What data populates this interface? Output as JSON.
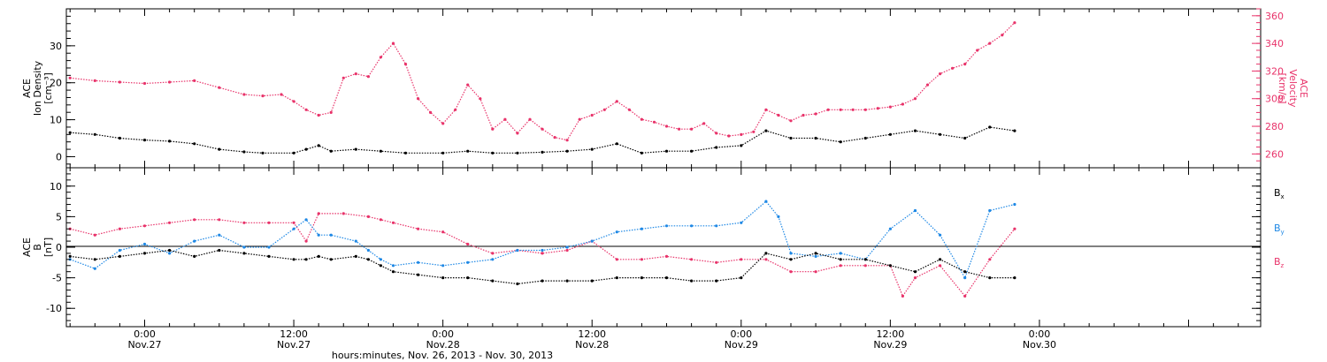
{
  "figure": {
    "xlabel": "hours:minutes, Nov. 26, 2013 - Nov. 30, 2013",
    "x_range_hours": [
      -6.3,
      89.8
    ],
    "x_ticks": [
      {
        "hours": 0,
        "time": "0:00",
        "date": "Nov.27"
      },
      {
        "hours": 12,
        "time": "12:00",
        "date": "Nov.27"
      },
      {
        "hours": 24,
        "time": "0:00",
        "date": "Nov.28"
      },
      {
        "hours": 36,
        "time": "12:00",
        "date": "Nov.28"
      },
      {
        "hours": 48,
        "time": "0:00",
        "date": "Nov.29"
      },
      {
        "hours": 60,
        "time": "12:00",
        "date": "Nov.29"
      },
      {
        "hours": 72,
        "time": "0:00",
        "date": "Nov.30"
      }
    ]
  },
  "top_panel": {
    "left_ylabel": [
      "ACE",
      "Ion Density",
      "[cm⁻³]"
    ],
    "right_ylabel": [
      "ACE",
      "Velocity",
      "[km/s]"
    ],
    "left_ticks": [
      "0",
      "10",
      "20",
      "30"
    ],
    "right_ticks": [
      "260",
      "280",
      "300",
      "320",
      "340",
      "360"
    ]
  },
  "bottom_panel": {
    "ylabel": [
      "ACE",
      "B",
      "[nT]"
    ],
    "ticks": [
      "-10",
      "-5",
      "0",
      "5",
      "10"
    ],
    "legend": [
      "B",
      "B",
      "B"
    ],
    "legend_subs": [
      "x",
      "y",
      "z"
    ]
  },
  "colors": {
    "density": "#000000",
    "velocity": "#e8336a",
    "bx": "#000000",
    "by": "#1e88e5",
    "bz": "#e8336a",
    "axis": "#000000"
  },
  "chart_data": [
    {
      "type": "scatter",
      "x_unit": "hours since 2013-11-27 00:00",
      "ylabel": "Ion Density",
      "ylim": [
        -3,
        40
      ],
      "series": [
        {
          "points": [
            [
              -6,
              6.5
            ],
            [
              -4,
              6
            ],
            [
              -2,
              5
            ],
            [
              0,
              4.5
            ],
            [
              2,
              4.2
            ],
            [
              4,
              3.5
            ],
            [
              6,
              2
            ],
            [
              8,
              1.3
            ],
            [
              9.5,
              1
            ],
            [
              12,
              1
            ],
            [
              13,
              2
            ],
            [
              14,
              3
            ],
            [
              15,
              1.5
            ],
            [
              17,
              2
            ],
            [
              19,
              1.5
            ],
            [
              21,
              1
            ],
            [
              24,
              1
            ],
            [
              26,
              1.5
            ],
            [
              28,
              1
            ],
            [
              30,
              1
            ],
            [
              32,
              1.2
            ],
            [
              34,
              1.5
            ],
            [
              36,
              2
            ],
            [
              38,
              3.5
            ],
            [
              40,
              1
            ],
            [
              42,
              1.5
            ],
            [
              44,
              1.5
            ],
            [
              46,
              2.5
            ],
            [
              48,
              3
            ],
            [
              50,
              7
            ],
            [
              52,
              5
            ],
            [
              54,
              5
            ],
            [
              56,
              4
            ],
            [
              58,
              5
            ],
            [
              60,
              6
            ],
            [
              62,
              7
            ],
            [
              64,
              6
            ],
            [
              66,
              5
            ],
            [
              68,
              8
            ],
            [
              70,
              7
            ]
          ]
        }
      ]
    },
    {
      "type": "scatter",
      "x_unit": "hours since 2013-11-27 00:00",
      "ylabel": "Velocity",
      "ylim": [
        250,
        365
      ],
      "series": [
        {
          "points": [
            [
              -6,
              315
            ],
            [
              -4,
              313
            ],
            [
              -2,
              312
            ],
            [
              0,
              311
            ],
            [
              2,
              312
            ],
            [
              4,
              313
            ],
            [
              6,
              308
            ],
            [
              8,
              303
            ],
            [
              9.5,
              302
            ],
            [
              11,
              303
            ],
            [
              12,
              298
            ],
            [
              13,
              292
            ],
            [
              14,
              288
            ],
            [
              15,
              290
            ],
            [
              16,
              315
            ],
            [
              17,
              318
            ],
            [
              18,
              316
            ],
            [
              19,
              330
            ],
            [
              20,
              340
            ],
            [
              21,
              325
            ],
            [
              22,
              300
            ],
            [
              23,
              290
            ],
            [
              24,
              282
            ],
            [
              25,
              292
            ],
            [
              26,
              310
            ],
            [
              27,
              300
            ],
            [
              28,
              278
            ],
            [
              29,
              285
            ],
            [
              30,
              275
            ],
            [
              31,
              285
            ],
            [
              32,
              278
            ],
            [
              33,
              272
            ],
            [
              34,
              270
            ],
            [
              35,
              285
            ],
            [
              36,
              288
            ],
            [
              37,
              292
            ],
            [
              38,
              298
            ],
            [
              39,
              292
            ],
            [
              40,
              285
            ],
            [
              41,
              283
            ],
            [
              42,
              280
            ],
            [
              43,
              278
            ],
            [
              44,
              278
            ],
            [
              45,
              282
            ],
            [
              46,
              275
            ],
            [
              47,
              273
            ],
            [
              48,
              274
            ],
            [
              49,
              276
            ],
            [
              50,
              292
            ],
            [
              51,
              288
            ],
            [
              52,
              284
            ],
            [
              53,
              288
            ],
            [
              54,
              289
            ],
            [
              55,
              292
            ],
            [
              56,
              292
            ],
            [
              57,
              292
            ],
            [
              58,
              292
            ],
            [
              59,
              293
            ],
            [
              60,
              294
            ],
            [
              61,
              296
            ],
            [
              62,
              300
            ],
            [
              63,
              310
            ],
            [
              64,
              318
            ],
            [
              65,
              322
            ],
            [
              66,
              325
            ],
            [
              67,
              335
            ],
            [
              68,
              340
            ],
            [
              69,
              346
            ],
            [
              70,
              355
            ]
          ]
        }
      ]
    },
    {
      "type": "scatter",
      "x_unit": "hours since 2013-11-27 00:00",
      "ylabel": "B",
      "ylim": [
        -13,
        13
      ],
      "series": [
        {
          "name": "Bx",
          "points": [
            [
              -6,
              -1.5
            ],
            [
              -4,
              -2
            ],
            [
              -2,
              -1.5
            ],
            [
              0,
              -1
            ],
            [
              2,
              -0.5
            ],
            [
              4,
              -1.5
            ],
            [
              6,
              -0.5
            ],
            [
              8,
              -1
            ],
            [
              10,
              -1.5
            ],
            [
              12,
              -2
            ],
            [
              13,
              -2
            ],
            [
              14,
              -1.5
            ],
            [
              15,
              -2
            ],
            [
              17,
              -1.5
            ],
            [
              18,
              -2
            ],
            [
              19,
              -3
            ],
            [
              20,
              -4
            ],
            [
              22,
              -4.5
            ],
            [
              24,
              -5
            ],
            [
              26,
              -5
            ],
            [
              28,
              -5.5
            ],
            [
              30,
              -6
            ],
            [
              32,
              -5.5
            ],
            [
              34,
              -5.5
            ],
            [
              36,
              -5.5
            ],
            [
              38,
              -5
            ],
            [
              40,
              -5
            ],
            [
              42,
              -5
            ],
            [
              44,
              -5.5
            ],
            [
              46,
              -5.5
            ],
            [
              48,
              -5
            ],
            [
              50,
              -1
            ],
            [
              52,
              -2
            ],
            [
              54,
              -1
            ],
            [
              56,
              -2
            ],
            [
              58,
              -2
            ],
            [
              60,
              -3
            ],
            [
              62,
              -4
            ],
            [
              64,
              -2
            ],
            [
              66,
              -4
            ],
            [
              68,
              -5
            ],
            [
              70,
              -5
            ]
          ]
        },
        {
          "name": "By",
          "points": [
            [
              -6,
              -2
            ],
            [
              -4,
              -3.5
            ],
            [
              -2,
              -0.5
            ],
            [
              0,
              0.5
            ],
            [
              2,
              -1
            ],
            [
              4,
              1
            ],
            [
              6,
              2
            ],
            [
              8,
              0
            ],
            [
              10,
              0
            ],
            [
              12,
              3
            ],
            [
              13,
              4.5
            ],
            [
              14,
              2
            ],
            [
              15,
              2
            ],
            [
              17,
              1
            ],
            [
              18,
              -0.5
            ],
            [
              19,
              -2
            ],
            [
              20,
              -3
            ],
            [
              22,
              -2.5
            ],
            [
              24,
              -3
            ],
            [
              26,
              -2.5
            ],
            [
              28,
              -2
            ],
            [
              30,
              -0.5
            ],
            [
              32,
              -0.5
            ],
            [
              34,
              0
            ],
            [
              36,
              1
            ],
            [
              38,
              2.5
            ],
            [
              40,
              3
            ],
            [
              42,
              3.5
            ],
            [
              44,
              3.5
            ],
            [
              46,
              3.5
            ],
            [
              48,
              4
            ],
            [
              50,
              7.5
            ],
            [
              51,
              5
            ],
            [
              52,
              -1
            ],
            [
              54,
              -1.5
            ],
            [
              56,
              -1
            ],
            [
              58,
              -2
            ],
            [
              60,
              3
            ],
            [
              62,
              6
            ],
            [
              64,
              2
            ],
            [
              66,
              -5
            ],
            [
              68,
              6
            ],
            [
              70,
              7
            ]
          ]
        },
        {
          "name": "Bz",
          "points": [
            [
              -6,
              3
            ],
            [
              -4,
              2
            ],
            [
              -2,
              3
            ],
            [
              0,
              3.5
            ],
            [
              2,
              4
            ],
            [
              4,
              4.5
            ],
            [
              6,
              4.5
            ],
            [
              8,
              4
            ],
            [
              10,
              4
            ],
            [
              12,
              4
            ],
            [
              13,
              1
            ],
            [
              14,
              5.5
            ],
            [
              16,
              5.5
            ],
            [
              18,
              5
            ],
            [
              19,
              4.5
            ],
            [
              20,
              4
            ],
            [
              22,
              3
            ],
            [
              24,
              2.5
            ],
            [
              26,
              0.5
            ],
            [
              28,
              -1
            ],
            [
              30,
              -0.5
            ],
            [
              32,
              -1
            ],
            [
              34,
              -0.5
            ],
            [
              36,
              1
            ],
            [
              38,
              -2
            ],
            [
              40,
              -2
            ],
            [
              42,
              -1.5
            ],
            [
              44,
              -2
            ],
            [
              46,
              -2.5
            ],
            [
              48,
              -2
            ],
            [
              50,
              -2
            ],
            [
              52,
              -4
            ],
            [
              54,
              -4
            ],
            [
              56,
              -3
            ],
            [
              58,
              -3
            ],
            [
              60,
              -3
            ],
            [
              61,
              -8
            ],
            [
              62,
              -5
            ],
            [
              64,
              -3
            ],
            [
              66,
              -8
            ],
            [
              68,
              -2
            ],
            [
              70,
              3
            ]
          ]
        }
      ]
    }
  ]
}
